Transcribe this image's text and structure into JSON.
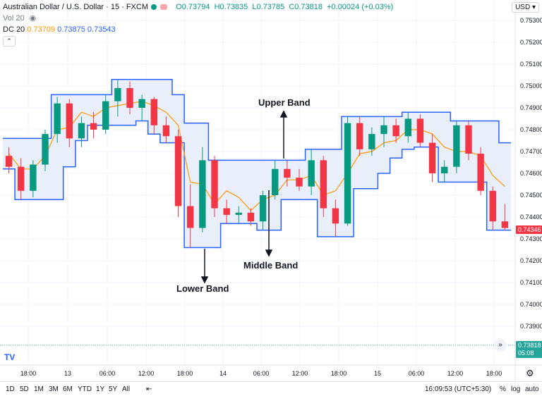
{
  "header": {
    "symbol": "Australian Dollar / U.S. Dollar · 15 · FXCM",
    "open": "O0.73794",
    "high": "H0.73835",
    "low": "L0.73785",
    "close": "C0.73818",
    "change": "+0.00024 (+0.03%)",
    "volume_label": "Vol 20",
    "dc_label": "DC 20",
    "dc_middle": "0.73709",
    "dc_upper": "0.73875",
    "dc_lower": "0.73543",
    "currency": "USD",
    "collapse_icon": "chevron-up-icon"
  },
  "price_tags": {
    "last_price": "0.74346",
    "ask_price": "0.73818",
    "countdown": "05:08"
  },
  "bottom_bar": {
    "ranges": [
      "1D",
      "5D",
      "1M",
      "3M",
      "6M",
      "YTD",
      "1Y",
      "5Y",
      "All"
    ],
    "clock": "16:09:53 (UTC+5:30)",
    "percent": "%",
    "log": "log",
    "auto": "auto"
  },
  "annotations": {
    "upper": "Upper Band",
    "middle": "Middle Band",
    "lower": "Lower Band"
  },
  "colors": {
    "band": "#2962ff",
    "band_fill": "#e8effb",
    "middle": "#ff9800",
    "up": "#089981",
    "down": "#f23645",
    "last_price": "#f23645",
    "ask": "#26a69a"
  },
  "chart_data": {
    "type": "candlestick",
    "title": "Australian Dollar / U.S. Dollar · 15 · FXCM",
    "ylim": [
      0.7385,
      0.7535
    ],
    "y_ticks": [
      0.753,
      0.752,
      0.751,
      0.75,
      0.749,
      0.748,
      0.747,
      0.746,
      0.745,
      0.744,
      0.743,
      0.742,
      0.741,
      0.74,
      0.739
    ],
    "x_ticks": [
      "18:00",
      "13",
      "06:00",
      "12:00",
      "18:00",
      "14",
      "06:00",
      "12:00",
      "18:00",
      "15",
      "06:00",
      "12:00",
      "18:00"
    ],
    "donchian_upper": [
      0.7476,
      0.7476,
      0.7476,
      0.7476,
      0.7496,
      0.7496,
      0.7496,
      0.7496,
      0.7496,
      0.7503,
      0.7503,
      0.7503,
      0.7503,
      0.7503,
      0.7496,
      0.7483,
      0.7483,
      0.7466,
      0.7466,
      0.7466,
      0.7466,
      0.7466,
      0.7466,
      0.7466,
      0.7466,
      0.7471,
      0.7471,
      0.7471,
      0.7486,
      0.7486,
      0.7486,
      0.7486,
      0.7486,
      0.7488,
      0.7488,
      0.7488,
      0.7488,
      0.7484,
      0.7484,
      0.7484,
      0.7484,
      0.7474
    ],
    "donchian_lower": [
      0.7462,
      0.7448,
      0.7448,
      0.7448,
      0.7448,
      0.7463,
      0.7475,
      0.7482,
      0.7482,
      0.7482,
      0.7482,
      0.7484,
      0.7478,
      0.7474,
      0.7474,
      0.7426,
      0.7426,
      0.7426,
      0.7437,
      0.7437,
      0.7437,
      0.7434,
      0.7434,
      0.7448,
      0.7448,
      0.7448,
      0.7431,
      0.7431,
      0.7431,
      0.7453,
      0.7453,
      0.746,
      0.7467,
      0.7471,
      0.7472,
      0.7472,
      0.7456,
      0.7456,
      0.7456,
      0.7456,
      0.7434,
      0.7434
    ],
    "donchian_middle": [
      0.7469,
      0.7462,
      0.7462,
      0.7468,
      0.748,
      0.7481,
      0.7488,
      0.7486,
      0.749,
      0.7491,
      0.7492,
      0.7493,
      0.7491,
      0.7488,
      0.7482,
      0.7456,
      0.7455,
      0.7446,
      0.7452,
      0.7449,
      0.7443,
      0.7448,
      0.745,
      0.7457,
      0.7457,
      0.7459,
      0.745,
      0.7452,
      0.746,
      0.7469,
      0.747,
      0.7474,
      0.7475,
      0.748,
      0.748,
      0.7478,
      0.7472,
      0.747,
      0.747,
      0.7468,
      0.7459,
      0.7454
    ],
    "candles": [
      {
        "o": 0.7468,
        "h": 0.7472,
        "l": 0.746,
        "c": 0.7463
      },
      {
        "o": 0.7463,
        "h": 0.7467,
        "l": 0.7448,
        "c": 0.7452
      },
      {
        "o": 0.7452,
        "h": 0.7466,
        "l": 0.7449,
        "c": 0.7464
      },
      {
        "o": 0.7464,
        "h": 0.748,
        "l": 0.7461,
        "c": 0.7478
      },
      {
        "o": 0.7478,
        "h": 0.7495,
        "l": 0.7474,
        "c": 0.7492
      },
      {
        "o": 0.7492,
        "h": 0.7494,
        "l": 0.7472,
        "c": 0.7476
      },
      {
        "o": 0.7476,
        "h": 0.7486,
        "l": 0.7472,
        "c": 0.7483
      },
      {
        "o": 0.7483,
        "h": 0.7488,
        "l": 0.7476,
        "c": 0.748
      },
      {
        "o": 0.748,
        "h": 0.7496,
        "l": 0.7478,
        "c": 0.7493
      },
      {
        "o": 0.7493,
        "h": 0.7503,
        "l": 0.7486,
        "c": 0.7499
      },
      {
        "o": 0.7499,
        "h": 0.7502,
        "l": 0.7487,
        "c": 0.749
      },
      {
        "o": 0.749,
        "h": 0.7496,
        "l": 0.7484,
        "c": 0.7494
      },
      {
        "o": 0.7494,
        "h": 0.7495,
        "l": 0.7478,
        "c": 0.7482
      },
      {
        "o": 0.7482,
        "h": 0.7486,
        "l": 0.7474,
        "c": 0.7477
      },
      {
        "o": 0.7477,
        "h": 0.748,
        "l": 0.744,
        "c": 0.7445
      },
      {
        "o": 0.7445,
        "h": 0.7455,
        "l": 0.7426,
        "c": 0.7435
      },
      {
        "o": 0.7435,
        "h": 0.7472,
        "l": 0.7433,
        "c": 0.7466
      },
      {
        "o": 0.7466,
        "h": 0.7468,
        "l": 0.744,
        "c": 0.7444
      },
      {
        "o": 0.7444,
        "h": 0.7448,
        "l": 0.7437,
        "c": 0.7441
      },
      {
        "o": 0.7441,
        "h": 0.7445,
        "l": 0.7437,
        "c": 0.7442
      },
      {
        "o": 0.7442,
        "h": 0.7444,
        "l": 0.7436,
        "c": 0.7438
      },
      {
        "o": 0.7438,
        "h": 0.7452,
        "l": 0.7434,
        "c": 0.745
      },
      {
        "o": 0.745,
        "h": 0.7466,
        "l": 0.7448,
        "c": 0.7462
      },
      {
        "o": 0.7462,
        "h": 0.7466,
        "l": 0.7454,
        "c": 0.7458
      },
      {
        "o": 0.7458,
        "h": 0.7462,
        "l": 0.7452,
        "c": 0.7454
      },
      {
        "o": 0.7454,
        "h": 0.7471,
        "l": 0.745,
        "c": 0.7466
      },
      {
        "o": 0.7466,
        "h": 0.7468,
        "l": 0.744,
        "c": 0.7444
      },
      {
        "o": 0.7444,
        "h": 0.7448,
        "l": 0.7431,
        "c": 0.7437
      },
      {
        "o": 0.7437,
        "h": 0.7486,
        "l": 0.7436,
        "c": 0.7483
      },
      {
        "o": 0.7483,
        "h": 0.7486,
        "l": 0.7468,
        "c": 0.7471
      },
      {
        "o": 0.7471,
        "h": 0.7481,
        "l": 0.7468,
        "c": 0.7478
      },
      {
        "o": 0.7478,
        "h": 0.7486,
        "l": 0.7472,
        "c": 0.7482
      },
      {
        "o": 0.7482,
        "h": 0.7485,
        "l": 0.7474,
        "c": 0.7477
      },
      {
        "o": 0.7477,
        "h": 0.7488,
        "l": 0.7474,
        "c": 0.7485
      },
      {
        "o": 0.7485,
        "h": 0.7487,
        "l": 0.7472,
        "c": 0.7474
      },
      {
        "o": 0.7474,
        "h": 0.7478,
        "l": 0.7456,
        "c": 0.746
      },
      {
        "o": 0.746,
        "h": 0.7466,
        "l": 0.7456,
        "c": 0.7463
      },
      {
        "o": 0.7463,
        "h": 0.7484,
        "l": 0.746,
        "c": 0.7482
      },
      {
        "o": 0.7482,
        "h": 0.7484,
        "l": 0.7466,
        "c": 0.7469
      },
      {
        "o": 0.7469,
        "h": 0.7472,
        "l": 0.745,
        "c": 0.7452
      },
      {
        "o": 0.7452,
        "h": 0.7454,
        "l": 0.7434,
        "c": 0.7438
      },
      {
        "o": 0.7438,
        "h": 0.7446,
        "l": 0.7434,
        "c": 0.7435
      }
    ]
  }
}
